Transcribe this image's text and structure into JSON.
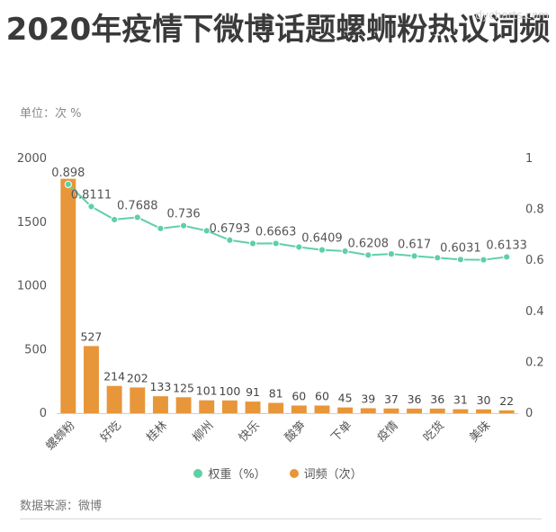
{
  "title": "2020年疫情下微博话题螺蛳粉热议词频",
  "watermark": "dycharts.com",
  "unit": "单位：次 %",
  "source": "数据来源：微博",
  "legend": {
    "line_label": "权重（%）",
    "bar_label": "词频（次）"
  },
  "colors": {
    "bar": "#e8963a",
    "line": "#5fd0a6"
  },
  "chart_data": {
    "type": "bar",
    "categories": [
      "螺蛳粉",
      "",
      "好吃",
      "",
      "桂林",
      "",
      "柳州",
      "",
      "快乐",
      "",
      "酸笋",
      "",
      "下单",
      "",
      "疫情",
      "",
      "吃货",
      "",
      "美味",
      ""
    ],
    "series": [
      {
        "name": "词频（次）",
        "type": "bar",
        "axis": "left",
        "values": [
          1840,
          527,
          214,
          202,
          133,
          125,
          101,
          100,
          91,
          81,
          60,
          60,
          45,
          39,
          37,
          36,
          36,
          31,
          30,
          22
        ],
        "labels": [
          "",
          "527",
          "214",
          "202",
          "133",
          "125",
          "101",
          "100",
          "91",
          "81",
          "60",
          "60",
          "45",
          "39",
          "37",
          "36",
          "36",
          "31",
          "30",
          "22"
        ]
      },
      {
        "name": "权重（%）",
        "type": "line",
        "axis": "right",
        "values": [
          0.898,
          0.8111,
          0.76,
          0.7688,
          0.725,
          0.736,
          0.716,
          0.6793,
          0.666,
          0.6663,
          0.652,
          0.6409,
          0.636,
          0.6208,
          0.625,
          0.617,
          0.61,
          0.6031,
          0.602,
          0.6133
        ],
        "labels": [
          "0.898",
          "0.8111",
          "",
          "0.7688",
          "",
          "0.736",
          "",
          "0.6793",
          "",
          "0.6663",
          "",
          "0.6409",
          "",
          "0.6208",
          "",
          "0.617",
          "",
          "0.6031",
          "",
          "0.6133"
        ]
      }
    ],
    "y_left": {
      "min": 0,
      "max": 2000,
      "ticks": [
        "0",
        "500",
        "1000",
        "1500",
        "2000"
      ]
    },
    "y_right": {
      "min": 0,
      "max": 1,
      "ticks": [
        "0",
        "0.2",
        "0.4",
        "0.6",
        "0.8",
        "1"
      ]
    }
  }
}
